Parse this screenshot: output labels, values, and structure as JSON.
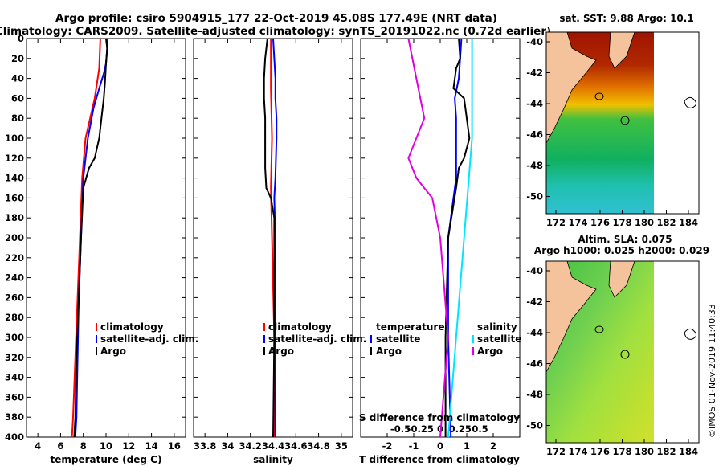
{
  "header": {
    "title_line1": "Argo profile: csiro 5904915_177 22-Oct-2019 45.08S 177.49E (NRT data)",
    "title_line2": "Climatology: CARS2009. Satellite-adjusted climatology: synTS_20191022.nc (0.72d earlier)"
  },
  "colors": {
    "climatology": "#ff0000",
    "satellite": "#0000ff",
    "argo": "#000000",
    "sat_salinity": "#00e5ff",
    "clim_salinity": "#e000e0",
    "land": "#f5c39b"
  },
  "chart_data": [
    {
      "type": "line",
      "name": "temperature",
      "xlabel": "temperature (deg C)",
      "ylabel": "depth",
      "xlim": [
        3,
        17
      ],
      "ylim": [
        400,
        0
      ],
      "xticks": [
        4,
        6,
        8,
        10,
        12,
        14,
        16
      ],
      "yticks": [
        0,
        20,
        40,
        60,
        80,
        100,
        120,
        140,
        160,
        180,
        200,
        220,
        240,
        260,
        280,
        300,
        320,
        340,
        360,
        380,
        400
      ],
      "legend": [
        "climatology",
        "satellite-adj. clim.",
        "Argo"
      ],
      "series": [
        {
          "name": "climatology",
          "color": "#ff0000",
          "depth": [
            0,
            30,
            60,
            80,
            100,
            140,
            200,
            260,
            320,
            380,
            400
          ],
          "values": [
            9.5,
            9.4,
            9.0,
            8.6,
            8.2,
            7.9,
            7.7,
            7.5,
            7.3,
            7.1,
            7.0
          ]
        },
        {
          "name": "satellite-adj. clim.",
          "color": "#0000ff",
          "depth": [
            0,
            10,
            25,
            35,
            50,
            70,
            100,
            140,
            200,
            260,
            320,
            380,
            400
          ],
          "values": [
            10.1,
            10.1,
            10.0,
            9.8,
            9.4,
            8.9,
            8.4,
            8.0,
            7.8,
            7.6,
            7.5,
            7.4,
            7.3
          ]
        },
        {
          "name": "Argo",
          "color": "#000000",
          "depth": [
            0,
            10,
            25,
            45,
            60,
            80,
            100,
            120,
            130,
            150,
            200,
            260,
            320,
            380,
            400
          ],
          "values": [
            10.0,
            10.1,
            10.0,
            9.9,
            9.8,
            9.6,
            9.4,
            9.0,
            8.5,
            8.0,
            7.8,
            7.6,
            7.4,
            7.3,
            7.2
          ]
        }
      ]
    },
    {
      "type": "line",
      "name": "salinity",
      "xlabel": "salinity",
      "ylabel": "depth",
      "xlim": [
        33.7,
        35.1
      ],
      "ylim": [
        400,
        0
      ],
      "xticks": [
        33.8,
        34,
        34.2,
        34.4,
        34.6,
        34.8,
        35
      ],
      "legend": [
        "climatology",
        "satellite-adj. clim.",
        "Argo"
      ],
      "series": [
        {
          "name": "climatology",
          "color": "#ff0000",
          "depth": [
            0,
            50,
            100,
            150,
            200,
            300,
            400
          ],
          "values": [
            34.38,
            34.38,
            34.39,
            34.38,
            34.39,
            34.41,
            34.41
          ]
        },
        {
          "name": "satellite-adj. clim.",
          "color": "#0000ff",
          "depth": [
            0,
            20,
            40,
            60,
            80,
            100,
            140,
            160,
            200,
            300,
            400
          ],
          "values": [
            34.4,
            34.41,
            34.42,
            34.42,
            34.43,
            34.43,
            34.42,
            34.41,
            34.42,
            34.42,
            34.42
          ]
        },
        {
          "name": "Argo",
          "color": "#000000",
          "depth": [
            0,
            20,
            40,
            60,
            80,
            100,
            130,
            150,
            160,
            180,
            200,
            300,
            400
          ],
          "values": [
            34.35,
            34.33,
            34.32,
            34.32,
            34.33,
            34.33,
            34.33,
            34.34,
            34.38,
            34.41,
            34.41,
            34.41,
            34.4
          ]
        }
      ]
    },
    {
      "type": "line",
      "name": "difference",
      "xlabel": "T difference from climatology",
      "x2label": "S difference from climatology",
      "xlim": [
        -3,
        3
      ],
      "ylim": [
        400,
        0
      ],
      "xticks": [
        -2,
        -1,
        0,
        1,
        2
      ],
      "x2ticks": [
        "-0.5",
        "-0.25",
        "0",
        "0.25",
        "0.5"
      ],
      "legend_left_title": "temperature",
      "legend_right_title": "salinity",
      "legend_left": [
        "satellite",
        "Argo"
      ],
      "legend_right": [
        "satellite",
        "Argo"
      ],
      "series": [
        {
          "name": "satellite T",
          "color": "#0000ff",
          "depth": [
            0,
            20,
            40,
            60,
            80,
            100,
            140,
            160,
            200,
            300,
            400
          ],
          "values": [
            0.8,
            0.75,
            0.7,
            0.55,
            0.6,
            0.6,
            0.6,
            0.5,
            0.3,
            0.3,
            0.4
          ]
        },
        {
          "name": "Argo T",
          "color": "#000000",
          "depth": [
            0,
            20,
            30,
            50,
            60,
            80,
            100,
            120,
            130,
            150,
            200,
            300,
            400
          ],
          "values": [
            0.7,
            0.75,
            0.6,
            0.5,
            0.9,
            1.0,
            1.1,
            0.9,
            0.7,
            0.6,
            0.3,
            0.2,
            0.2
          ]
        },
        {
          "name": "satellite S",
          "color": "#00e5ff",
          "depth": [
            0,
            100,
            200,
            300,
            400
          ],
          "values": [
            0.2,
            0.2,
            0.15,
            0.1,
            0.05
          ]
        },
        {
          "name": "Argo S",
          "color": "#e000e0",
          "depth": [
            0,
            40,
            80,
            120,
            140,
            160,
            200,
            300,
            400
          ],
          "values": [
            -0.2,
            -0.15,
            -0.1,
            -0.2,
            -0.15,
            -0.05,
            0.0,
            0.05,
            0.0
          ]
        }
      ]
    },
    {
      "type": "heatmap",
      "name": "sst-map",
      "title": "sat. SST: 9.88 Argo: 10.1",
      "xticks": [
        "172",
        "174",
        "176",
        "178",
        "180",
        "182",
        "184"
      ],
      "yticks": [
        "-40",
        "-42",
        "-44",
        "-46",
        "-48",
        "-50"
      ]
    },
    {
      "type": "heatmap",
      "name": "sla-map",
      "title_line1": "Altim. SLA: 0.075",
      "title_line2": "Argo h1000: 0.025 h2000: 0.029",
      "xticks": [
        "172",
        "174",
        "176",
        "178",
        "180",
        "182",
        "184"
      ],
      "yticks": [
        "-40",
        "-42",
        "-44",
        "-46",
        "-48",
        "-50"
      ]
    }
  ],
  "footer": {
    "credit": "©IMOS 01-Nov-2019 11:40:33"
  }
}
